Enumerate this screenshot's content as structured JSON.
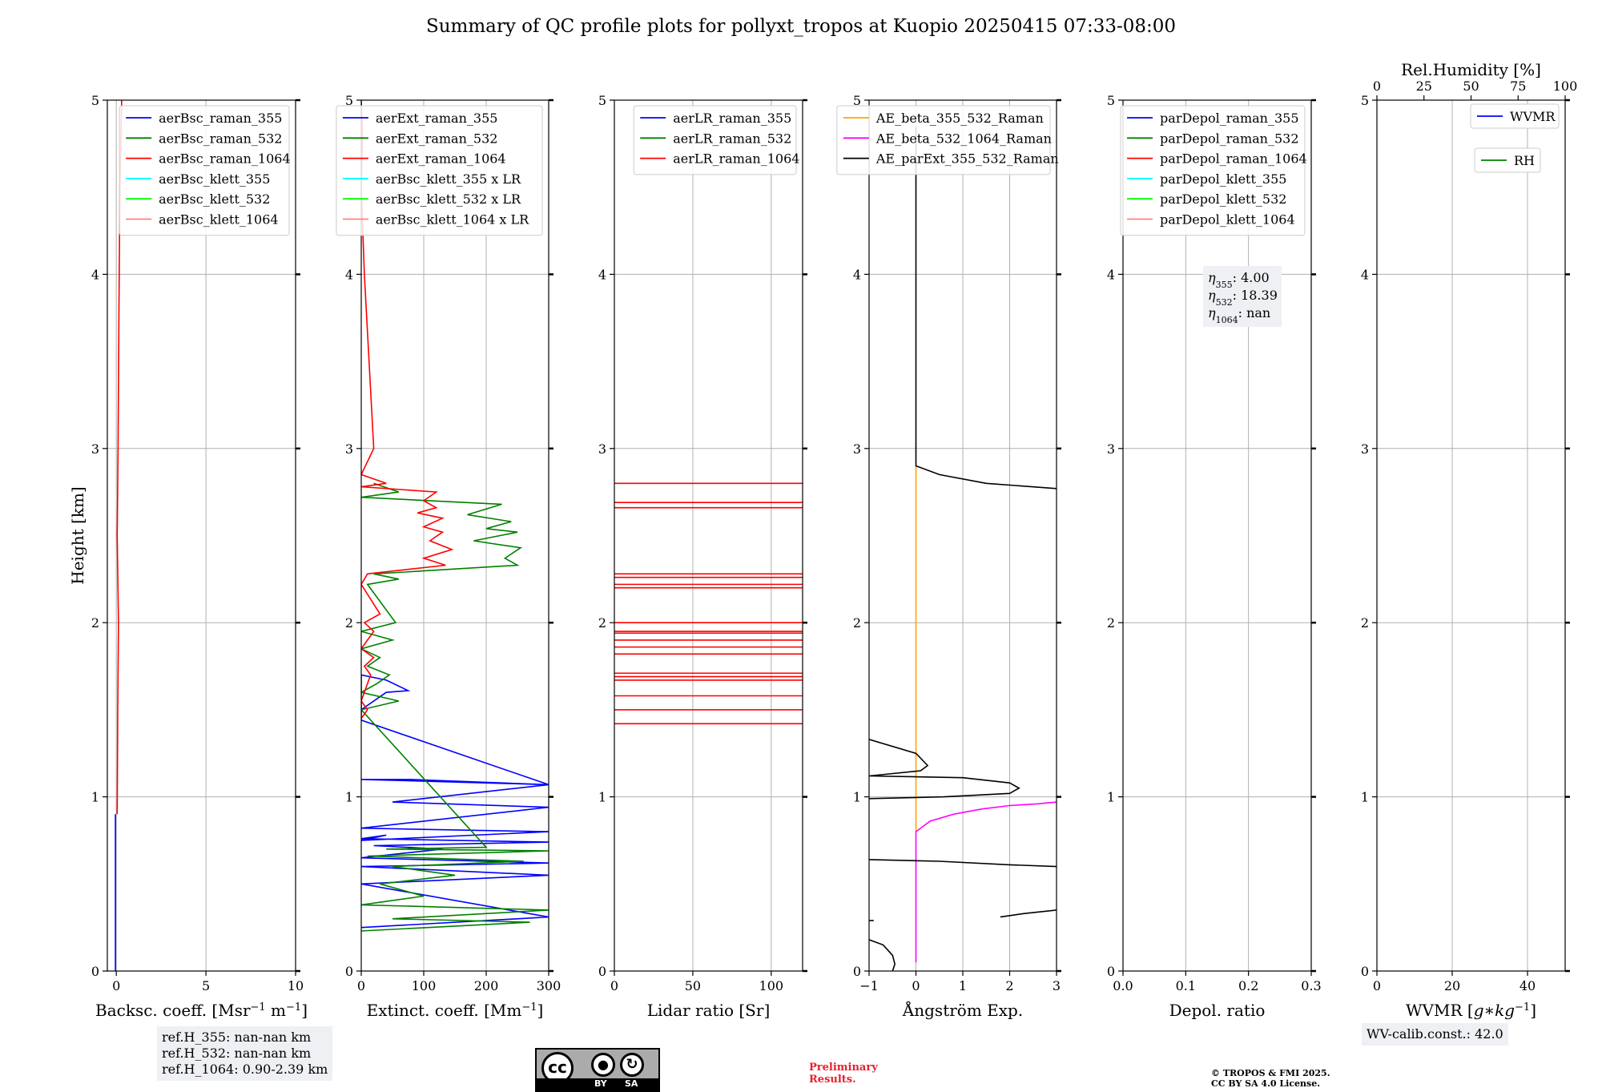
{
  "title": "Summary of QC profile plots for pollyxt_tropos at Kuopio 20250415 07:33-08:00",
  "chart_data": [
    {
      "type": "line",
      "id": "bsc",
      "xlabel": "Backsc. coeff. [Msr$^{-1}$ m$^{-1}$]",
      "xlabel_parts": [
        "Backsc. coeff. [Msr",
        "−1",
        " m",
        "−1",
        "]"
      ],
      "ylabel": "Height [km]",
      "xlim": [
        -0.5,
        10
      ],
      "ylim": [
        0,
        5
      ],
      "xticks": [
        0,
        5,
        10
      ],
      "xtick_labels": [
        "0",
        "5",
        "10"
      ],
      "yticks": [
        0,
        1,
        2,
        3,
        4,
        5
      ],
      "ytick_labels": [
        "0",
        "1",
        "2",
        "3",
        "4",
        "5"
      ],
      "legend": {
        "placement": "top-right",
        "entries": [
          {
            "label": "aerBsc_raman_355",
            "color": "#0000ff"
          },
          {
            "label": "aerBsc_raman_532",
            "color": "#008000"
          },
          {
            "label": "aerBsc_raman_1064",
            "color": "#ff0000"
          },
          {
            "label": "aerBsc_klett_355",
            "color": "#00ffff"
          },
          {
            "label": "aerBsc_klett_532",
            "color": "#00ff00"
          },
          {
            "label": "aerBsc_klett_1064",
            "color": "#ff8080"
          }
        ]
      },
      "series": [
        {
          "name": "aerBsc_raman_355",
          "color": "#0000ff",
          "x": [
            -0.05,
            -0.05
          ],
          "y": [
            0.0,
            0.9
          ]
        },
        {
          "name": "aerBsc_raman_1064",
          "color": "#ff0000",
          "x": [
            0.05,
            0.08,
            0.12,
            0.05,
            0.1,
            0.15,
            0.2,
            0.3
          ],
          "y": [
            0.9,
            1.5,
            2.0,
            2.5,
            3.0,
            3.8,
            4.5,
            5.0
          ]
        }
      ]
    },
    {
      "type": "line",
      "id": "ext",
      "xlabel": "Extinct. coeff. [Mm$^{-1}$]",
      "xlabel_parts": [
        "Extinct. coeff. [Mm",
        "−1",
        "]"
      ],
      "xlim": [
        0,
        300
      ],
      "ylim": [
        0,
        5
      ],
      "xticks": [
        0,
        100,
        200,
        300
      ],
      "xtick_labels": [
        "0",
        "100",
        "200",
        "300"
      ],
      "yticks": [
        0,
        1,
        2,
        3,
        4,
        5
      ],
      "ytick_labels": [
        "0",
        "1",
        "2",
        "3",
        "4",
        "5"
      ],
      "legend": {
        "placement": "top-right",
        "entries": [
          {
            "label": "aerExt_raman_355",
            "color": "#0000ff"
          },
          {
            "label": "aerExt_raman_532",
            "color": "#008000"
          },
          {
            "label": "aerExt_raman_1064",
            "color": "#ff0000"
          },
          {
            "label": "aerBsc_klett_355 x LR",
            "color": "#00ffff"
          },
          {
            "label": "aerBsc_klett_532 x LR",
            "color": "#00ff00"
          },
          {
            "label": "aerBsc_klett_1064 x LR",
            "color": "#ff8080"
          }
        ]
      },
      "series": [
        {
          "name": "aerExt_raman_355",
          "color": "#0000ff",
          "x": [
            0,
            300,
            0,
            300,
            0,
            300,
            0,
            130,
            20,
            300,
            0,
            40,
            0,
            300,
            0,
            300,
            50,
            300,
            80,
            0,
            300,
            0,
            0,
            40,
            75,
            40,
            0,
            0
          ],
          "y": [
            0.25,
            0.31,
            0.5,
            0.55,
            0.6,
            0.62,
            0.65,
            0.7,
            0.72,
            0.74,
            0.76,
            0.78,
            0.75,
            0.8,
            0.82,
            0.94,
            0.97,
            1.07,
            1.1,
            1.1,
            1.07,
            1.44,
            1.5,
            1.6,
            1.61,
            1.67,
            1.7,
            1.5
          ]
        },
        {
          "name": "aerExt_raman_532",
          "color": "#008000",
          "x": [
            0,
            270,
            50,
            300,
            0,
            100,
            30,
            150,
            50,
            260,
            10,
            300,
            40,
            200,
            0,
            60,
            0,
            25,
            45,
            10,
            30,
            0,
            50,
            0,
            55,
            10,
            60,
            20,
            250,
            230,
            255,
            180,
            250,
            200,
            240,
            170,
            225,
            0,
            60,
            20
          ],
          "y": [
            0.23,
            0.28,
            0.3,
            0.35,
            0.38,
            0.43,
            0.5,
            0.55,
            0.6,
            0.63,
            0.66,
            0.69,
            0.7,
            0.71,
            1.5,
            1.55,
            1.6,
            1.65,
            1.7,
            1.75,
            1.8,
            1.85,
            1.9,
            1.95,
            2.0,
            2.22,
            2.25,
            2.28,
            2.33,
            2.37,
            2.43,
            2.47,
            2.52,
            2.54,
            2.58,
            2.62,
            2.68,
            2.72,
            2.75,
            2.8
          ]
        },
        {
          "name": "aerExt_raman_1064",
          "color": "#ff0000",
          "x": [
            0,
            10,
            0,
            15,
            5,
            20,
            0,
            10,
            20,
            5,
            30,
            0,
            10,
            135,
            100,
            145,
            110,
            130,
            100,
            130,
            90,
            120,
            100,
            120,
            0,
            40,
            0,
            20,
            5,
            0,
            2,
            0
          ],
          "y": [
            1.45,
            1.5,
            1.55,
            1.7,
            1.75,
            1.8,
            1.85,
            1.9,
            1.95,
            2.0,
            2.05,
            2.22,
            2.28,
            2.33,
            2.37,
            2.42,
            2.47,
            2.52,
            2.55,
            2.6,
            2.63,
            2.66,
            2.7,
            2.75,
            2.78,
            2.8,
            2.85,
            3.0,
            4.0,
            4.5,
            4.8,
            5.0
          ]
        }
      ]
    },
    {
      "type": "line",
      "id": "lr",
      "xlabel": "Lidar ratio [Sr]",
      "xlabel_parts": [
        "Lidar ratio [Sr]"
      ],
      "xlim": [
        0,
        120
      ],
      "ylim": [
        0,
        5
      ],
      "xticks": [
        0,
        50,
        100
      ],
      "xtick_labels": [
        "0",
        "50",
        "100"
      ],
      "yticks": [
        0,
        1,
        2,
        3,
        4,
        5
      ],
      "ytick_labels": [
        "0",
        "1",
        "2",
        "3",
        "4",
        "5"
      ],
      "legend": {
        "placement": "top-right",
        "entries": [
          {
            "label": "aerLR_raman_355",
            "color": "#0000ff"
          },
          {
            "label": "aerLR_raman_532",
            "color": "#008000"
          },
          {
            "label": "aerLR_raman_1064",
            "color": "#ff0000"
          }
        ]
      },
      "series": [
        {
          "name": "aerLR_raman_1064",
          "color": "#ff0000",
          "hlines": [
            1.42,
            1.5,
            1.58,
            1.67,
            1.69,
            1.71,
            1.82,
            1.86,
            1.9,
            1.94,
            1.95,
            2.0,
            2.2,
            2.22,
            2.26,
            2.28,
            2.66,
            2.69,
            2.8
          ]
        }
      ]
    },
    {
      "type": "line",
      "id": "ae",
      "xlabel": "Ångström Exp.",
      "xlabel_parts": [
        "Ångström Exp."
      ],
      "xlim": [
        -1,
        3
      ],
      "ylim": [
        0,
        5
      ],
      "xticks": [
        -1,
        0,
        1,
        2,
        3
      ],
      "xtick_labels": [
        "−1",
        "0",
        "1",
        "2",
        "3"
      ],
      "yticks": [
        0,
        1,
        2,
        3,
        4,
        5
      ],
      "ytick_labels": [
        "0",
        "1",
        "2",
        "3",
        "4",
        "5"
      ],
      "legend": {
        "placement": "top-right",
        "entries": [
          {
            "label": "AE_beta_355_532_Raman",
            "color": "#ffa500"
          },
          {
            "label": "AE_beta_532_1064_Raman",
            "color": "#ff00ff"
          },
          {
            "label": "AE_parExt_355_532_Raman",
            "color": "#000000"
          }
        ]
      },
      "series": [
        {
          "name": "AE_beta_355_532_Raman",
          "color": "#ffa500",
          "x": [
            0,
            0
          ],
          "y": [
            0.8,
            2.9
          ]
        },
        {
          "name": "AE_beta_532_1064_Raman",
          "color": "#ff00ff",
          "x": [
            0,
            0,
            0.3,
            0.8,
            1.4,
            2.0,
            2.6,
            3.0
          ],
          "y": [
            0.05,
            0.8,
            0.86,
            0.9,
            0.93,
            0.95,
            0.96,
            0.97
          ]
        },
        {
          "name": "AE_parExt_355_532_Raman",
          "color": "#000000",
          "x": [
            -1,
            -0.7,
            -0.5,
            -0.45,
            -0.5
          ],
          "y": [
            0.18,
            0.15,
            0.09,
            0.04,
            0.0
          ]
        },
        {
          "name": "AE_parExt_355_532_Raman (2)",
          "color": "#000000",
          "x": [
            -1,
            -0.9
          ],
          "y": [
            0.29,
            0.29
          ]
        },
        {
          "name": "AE_parExt_355_532_Raman (3)",
          "color": "#000000",
          "x": [
            1.8,
            2.05,
            2.3,
            3.0
          ],
          "y": [
            0.31,
            0.32,
            0.33,
            0.35
          ]
        },
        {
          "name": "AE_parExt_355_532_Raman (4)",
          "color": "#000000",
          "x": [
            -1,
            0.5,
            2.0,
            3.0
          ],
          "y": [
            0.64,
            0.63,
            0.61,
            0.6
          ]
        },
        {
          "name": "AE_parExt_355_532_Raman (5)",
          "color": "#000000",
          "x": [
            -1,
            0.6,
            2.0,
            2.2,
            2.0,
            1.0,
            -1,
            0.1,
            0.25,
            0.0,
            -1
          ],
          "y": [
            0.99,
            1.0,
            1.02,
            1.05,
            1.08,
            1.11,
            1.12,
            1.15,
            1.18,
            1.25,
            1.33
          ]
        },
        {
          "name": "AE_parExt_355_532_Raman (6)",
          "color": "#000000",
          "x": [
            0,
            0,
            0.5,
            1.5,
            3.0
          ],
          "y": [
            4.85,
            2.9,
            2.85,
            2.8,
            2.77
          ]
        }
      ]
    },
    {
      "type": "line",
      "id": "depol",
      "xlabel": "Depol. ratio",
      "xlabel_parts": [
        "Depol. ratio"
      ],
      "xlim": [
        0,
        0.3
      ],
      "ylim": [
        0,
        5
      ],
      "xticks": [
        0,
        0.1,
        0.2,
        0.3
      ],
      "xtick_labels": [
        "0.0",
        "0.1",
        "0.2",
        "0.3"
      ],
      "yticks": [
        0,
        1,
        2,
        3,
        4,
        5
      ],
      "ytick_labels": [
        "0",
        "1",
        "2",
        "3",
        "4",
        "5"
      ],
      "legend": {
        "placement": "top-right",
        "entries": [
          {
            "label": "parDepol_raman_355",
            "color": "#0000ff"
          },
          {
            "label": "parDepol_raman_532",
            "color": "#008000"
          },
          {
            "label": "parDepol_raman_1064",
            "color": "#ff0000"
          },
          {
            "label": "parDepol_klett_355",
            "color": "#00ffff"
          },
          {
            "label": "parDepol_klett_532",
            "color": "#00ff00"
          },
          {
            "label": "parDepol_klett_1064",
            "color": "#ff8080"
          }
        ]
      },
      "annotation": {
        "lines": [
          {
            "sym": "η",
            "sub": "355",
            "value": ": 4.00"
          },
          {
            "sym": "η",
            "sub": "532",
            "value": ": 18.39"
          },
          {
            "sym": "η",
            "sub": "1064",
            "value": ": nan"
          }
        ]
      },
      "series": []
    },
    {
      "type": "line",
      "id": "wv",
      "xlabel": "WVMR [$g*kg^{-1}$]",
      "xlabel_parts": [
        "WVMR [",
        "g∗kg",
        "−1",
        "]"
      ],
      "top_xlabel": "Rel.Humidity [%]",
      "xlim": [
        0,
        50
      ],
      "top_xlim": [
        0,
        100
      ],
      "ylim": [
        0,
        5
      ],
      "xticks": [
        0,
        20,
        40
      ],
      "xtick_labels": [
        "0",
        "20",
        "40"
      ],
      "top_xticks": [
        0,
        25,
        50,
        75,
        100
      ],
      "top_xtick_labels": [
        "0",
        "25",
        "50",
        "75",
        "100"
      ],
      "yticks": [
        0,
        1,
        2,
        3,
        4,
        5
      ],
      "ytick_labels": [
        "0",
        "1",
        "2",
        "3",
        "4",
        "5"
      ],
      "legend": {
        "placement": "top-right",
        "entries": [
          {
            "label": "WVMR",
            "color": "#0000ff"
          },
          {
            "label": "RH",
            "color": "#008000"
          }
        ]
      },
      "series": []
    }
  ],
  "info": {
    "ref_h_355": "ref.H_355: nan-nan km",
    "ref_h_532": "ref.H_532: nan-nan km",
    "ref_h_1064": "ref.H_1064: 0.90-2.39 km",
    "wv_calib": "WV-calib.const.: 42.0"
  },
  "footer": {
    "prelim_line1": "Preliminary",
    "prelim_line2": "Results.",
    "copyright_line1": "© TROPOS & FMI 2025.",
    "copyright_line2": "CC BY SA 4.0 License.",
    "cc_logo_text": "cc",
    "cc_by": "BY",
    "cc_sa": "SA"
  }
}
